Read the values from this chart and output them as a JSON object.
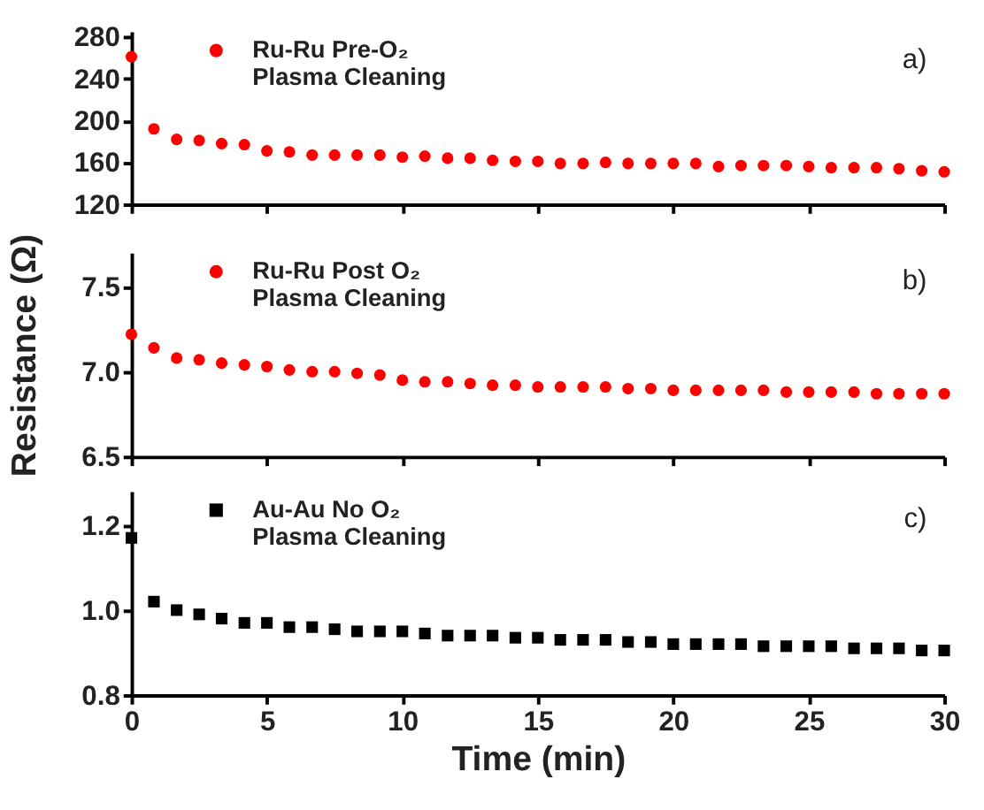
{
  "chart_data": [
    {
      "type": "scatter",
      "x": [
        0,
        0.83,
        1.67,
        2.5,
        3.33,
        4.17,
        5,
        5.83,
        6.67,
        7.5,
        8.33,
        9.17,
        10,
        10.83,
        11.67,
        12.5,
        13.33,
        14.17,
        15,
        15.83,
        16.67,
        17.5,
        18.33,
        19.17,
        20,
        20.83,
        21.67,
        22.5,
        23.33,
        24.17,
        25,
        25.83,
        26.67,
        27.5,
        28.33,
        29.17,
        30
      ],
      "series": [
        {
          "name": "Ru-Ru Pre-O₂\nPlasma Cleaning",
          "color": "#ff0000",
          "values": [
            261,
            192,
            182,
            181,
            178,
            177,
            171,
            170,
            167,
            167,
            167,
            167,
            165,
            166,
            164,
            164,
            162,
            161,
            161,
            159,
            159,
            160,
            159,
            159,
            159,
            159,
            156,
            157,
            157,
            157,
            156,
            155,
            155,
            155,
            154,
            152,
            151
          ]
        }
      ],
      "marker": "circle",
      "legend": "top left",
      "annotations": [
        "a)"
      ],
      "xlim": [
        0,
        30
      ],
      "xticks": [
        0,
        5,
        10,
        15,
        20,
        25,
        30
      ],
      "ylim": [
        120,
        285
      ],
      "yticks": [
        120,
        160,
        200,
        240,
        280
      ],
      "tick_labels": "y",
      "grid": false
    },
    {
      "type": "scatter",
      "x": [
        0,
        0.83,
        1.67,
        2.5,
        3.33,
        4.17,
        5,
        5.83,
        6.67,
        7.5,
        8.33,
        9.17,
        10,
        10.83,
        11.67,
        12.5,
        13.33,
        14.17,
        15,
        15.83,
        16.67,
        17.5,
        18.33,
        19.17,
        20,
        20.83,
        21.67,
        22.5,
        23.33,
        24.17,
        25,
        25.83,
        26.67,
        27.5,
        28.33,
        29.17,
        30
      ],
      "series": [
        {
          "name": "Ru-Ru Post O₂\nPlasma Cleaning",
          "color": "#ff0000",
          "values": [
            7.22,
            7.14,
            7.08,
            7.07,
            7.05,
            7.04,
            7.03,
            7.01,
            7.0,
            7.0,
            6.99,
            6.98,
            6.95,
            6.94,
            6.94,
            6.93,
            6.92,
            6.92,
            6.91,
            6.91,
            6.91,
            6.91,
            6.9,
            6.9,
            6.89,
            6.89,
            6.89,
            6.89,
            6.89,
            6.88,
            6.88,
            6.88,
            6.88,
            6.87,
            6.87,
            6.87,
            6.87
          ]
        }
      ],
      "marker": "circle",
      "legend": "top left",
      "annotations": [
        "b)"
      ],
      "ylabel": "Resistance (Ω)",
      "xlim": [
        0,
        30
      ],
      "xticks": [
        0,
        5,
        10,
        15,
        20,
        25,
        30
      ],
      "ylim": [
        6.5,
        7.7
      ],
      "yticks": [
        {
          "value": 6.5,
          "label": "6.5"
        },
        {
          "value": 7.0,
          "label": "7.0"
        },
        {
          "value": 7.5,
          "label": "7.5"
        }
      ],
      "tick_labels": "y",
      "grid": false
    },
    {
      "type": "scatter",
      "x": [
        0,
        0.83,
        1.67,
        2.5,
        3.33,
        4.17,
        5,
        5.83,
        6.67,
        7.5,
        8.33,
        9.17,
        10,
        10.83,
        11.67,
        12.5,
        13.33,
        14.17,
        15,
        15.83,
        16.67,
        17.5,
        18.33,
        19.17,
        20,
        20.83,
        21.67,
        22.5,
        23.33,
        24.17,
        25,
        25.83,
        26.67,
        27.5,
        28.33,
        29.17,
        30
      ],
      "series": [
        {
          "name": "Au-Au No O₂\nPlasma Cleaning",
          "color": "#000000",
          "values": [
            1.17,
            1.02,
            1.0,
            0.99,
            0.98,
            0.97,
            0.97,
            0.96,
            0.96,
            0.955,
            0.95,
            0.95,
            0.95,
            0.945,
            0.94,
            0.94,
            0.94,
            0.935,
            0.935,
            0.93,
            0.93,
            0.93,
            0.925,
            0.925,
            0.92,
            0.92,
            0.92,
            0.92,
            0.915,
            0.915,
            0.915,
            0.915,
            0.91,
            0.91,
            0.91,
            0.905,
            0.905
          ]
        }
      ],
      "marker": "square",
      "legend": "top left",
      "annotations": [
        "c)"
      ],
      "xlabel": "Time (min)",
      "xlim": [
        0,
        30
      ],
      "xticks": [
        0,
        5,
        10,
        15,
        20,
        25,
        30
      ],
      "ylim": [
        0.8,
        1.28
      ],
      "yticks": [
        {
          "value": 0.8,
          "label": "0.8"
        },
        {
          "value": 1.0,
          "label": "1.0"
        },
        {
          "value": 1.2,
          "label": "1.2"
        }
      ],
      "grid": false
    }
  ]
}
